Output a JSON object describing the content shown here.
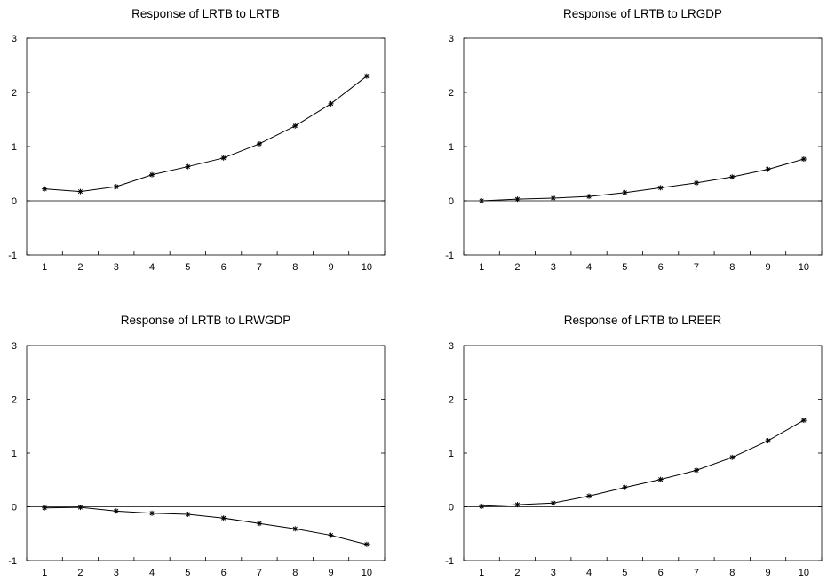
{
  "chart_data": [
    {
      "type": "line",
      "title": "Response of LRTB to LRTB",
      "x": [
        1,
        2,
        3,
        4,
        5,
        6,
        7,
        8,
        9,
        10
      ],
      "series": [
        {
          "values": [
            0.22,
            0.17,
            0.26,
            0.48,
            0.63,
            0.79,
            1.05,
            1.38,
            1.79,
            2.3
          ]
        }
      ],
      "ylim": [
        -1,
        3
      ],
      "yticks": [
        -1,
        0,
        1,
        2,
        3
      ],
      "xlabel": "",
      "ylabel": "",
      "zero_line": true,
      "grid": false,
      "marker": "asterisk"
    },
    {
      "type": "line",
      "title": "Response of LRTB to LRGDP",
      "x": [
        1,
        2,
        3,
        4,
        5,
        6,
        7,
        8,
        9,
        10
      ],
      "series": [
        {
          "values": [
            0.0,
            0.03,
            0.05,
            0.08,
            0.15,
            0.24,
            0.33,
            0.44,
            0.58,
            0.77
          ]
        }
      ],
      "ylim": [
        -1,
        3
      ],
      "yticks": [
        -1,
        0,
        1,
        2,
        3
      ],
      "xlabel": "",
      "ylabel": "",
      "zero_line": true,
      "grid": false,
      "marker": "asterisk"
    },
    {
      "type": "line",
      "title": "Response of LRTB to LRWGDP",
      "x": [
        1,
        2,
        3,
        4,
        5,
        6,
        7,
        8,
        9,
        10
      ],
      "series": [
        {
          "values": [
            -0.02,
            -0.01,
            -0.08,
            -0.12,
            -0.14,
            -0.21,
            -0.31,
            -0.41,
            -0.53,
            -0.7
          ]
        }
      ],
      "ylim": [
        -1,
        3
      ],
      "yticks": [
        -1,
        0,
        1,
        2,
        3
      ],
      "xlabel": "",
      "ylabel": "",
      "zero_line": true,
      "grid": false,
      "marker": "asterisk"
    },
    {
      "type": "line",
      "title": "Response of LRTB to LREER",
      "x": [
        1,
        2,
        3,
        4,
        5,
        6,
        7,
        8,
        9,
        10
      ],
      "series": [
        {
          "values": [
            0.01,
            0.04,
            0.07,
            0.2,
            0.36,
            0.51,
            0.68,
            0.92,
            1.23,
            1.61
          ]
        }
      ],
      "ylim": [
        -1,
        3
      ],
      "yticks": [
        -1,
        0,
        1,
        2,
        3
      ],
      "xlabel": "",
      "ylabel": "",
      "zero_line": true,
      "grid": false,
      "marker": "asterisk"
    }
  ]
}
